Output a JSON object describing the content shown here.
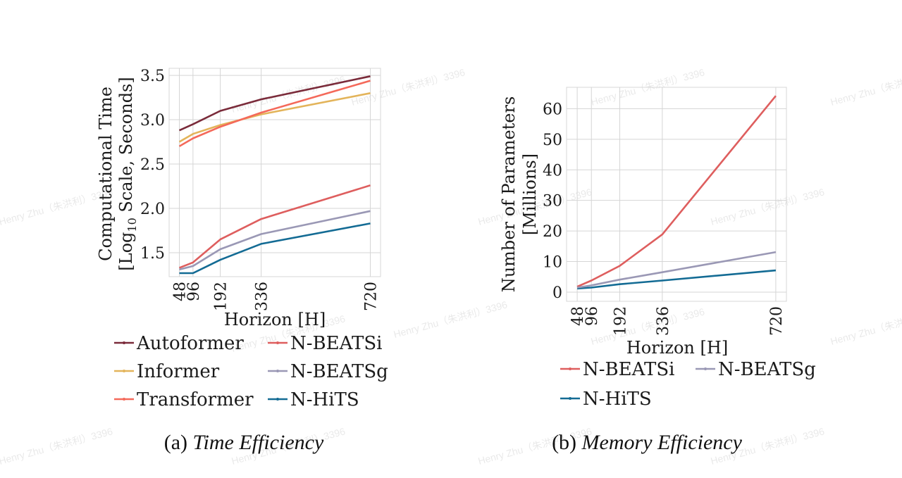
{
  "watermark": {
    "text": "Henry Zhu（朱洪利）3396"
  },
  "chart_data": [
    {
      "type": "line",
      "id": "time",
      "caption_prefix": "(a)",
      "caption_title": "Time Efficiency",
      "xlabel": "Horizon [H]",
      "ylabel_line1": "Computational Time",
      "ylabel_line2_pre": "[Log",
      "ylabel_sub": "10",
      "ylabel_line2_post": " Scale, Seconds]",
      "x": [
        48,
        96,
        192,
        336,
        720
      ],
      "xticks": [
        "48",
        "96",
        "192",
        "336",
        "720"
      ],
      "xlim": [
        12,
        756
      ],
      "ylim": [
        1.23,
        3.58
      ],
      "yticks": [
        1.5,
        2.0,
        2.5,
        3.0,
        3.5
      ],
      "ytick_labels": [
        "1.5",
        "2.0",
        "2.5",
        "3.0",
        "3.5"
      ],
      "grid": true,
      "legend_columns": 2,
      "series": [
        {
          "name": "Autoformer",
          "color": "#7a2b3a",
          "values": [
            2.88,
            2.95,
            3.1,
            3.23,
            3.49
          ]
        },
        {
          "name": "Informer",
          "color": "#e3b45a",
          "values": [
            2.75,
            2.84,
            2.94,
            3.06,
            3.3
          ]
        },
        {
          "name": "Transformer",
          "color": "#f4695a",
          "values": [
            2.7,
            2.79,
            2.92,
            3.08,
            3.44
          ]
        },
        {
          "name": "N-BEATSi",
          "color": "#de5e5e",
          "values": [
            1.33,
            1.39,
            1.65,
            1.88,
            2.26
          ]
        },
        {
          "name": "N-BEATSg",
          "color": "#9a98b5",
          "values": [
            1.31,
            1.35,
            1.54,
            1.71,
            1.97
          ]
        },
        {
          "name": "N-HiTS",
          "color": "#136b94",
          "values": [
            1.27,
            1.27,
            1.42,
            1.6,
            1.83
          ]
        }
      ]
    },
    {
      "type": "line",
      "id": "memory",
      "caption_prefix": "(b)",
      "caption_title": "Memory Efficiency",
      "xlabel": "Horizon [H]",
      "ylabel_line1": "Number of Parameters",
      "ylabel_line2": "[Millions]",
      "x": [
        48,
        96,
        192,
        336,
        720
      ],
      "xticks": [
        "48",
        "96",
        "192",
        "336",
        "720"
      ],
      "xlim": [
        12,
        756
      ],
      "ylim": [
        -3,
        67
      ],
      "yticks": [
        0,
        10,
        20,
        30,
        40,
        50,
        60
      ],
      "ytick_labels": [
        "0",
        "10",
        "20",
        "30",
        "40",
        "50",
        "60"
      ],
      "grid": true,
      "legend_columns": 2,
      "series": [
        {
          "name": "N-BEATSi",
          "color": "#de5e5e",
          "values": [
            1.8,
            3.8,
            8.6,
            18.9,
            64.2
          ]
        },
        {
          "name": "N-HiTS",
          "color": "#136b94",
          "values": [
            1.2,
            1.5,
            2.6,
            3.8,
            7.1
          ]
        },
        {
          "name": "N-BEATSg",
          "color": "#9a98b5",
          "values": [
            1.5,
            2.2,
            4.1,
            6.5,
            13.1
          ]
        }
      ]
    }
  ]
}
